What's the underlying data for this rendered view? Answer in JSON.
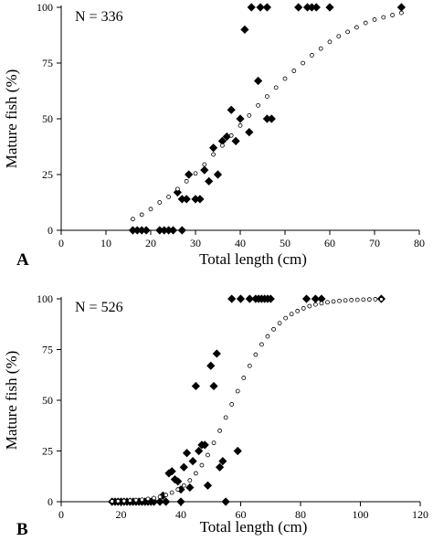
{
  "chart_data": [
    {
      "panel_label": "A",
      "type": "scatter",
      "annotation": "N = 336",
      "xlabel": "Total length (cm)",
      "ylabel": "Mature fish (%)",
      "xlim": [
        0,
        80
      ],
      "ylim": [
        0,
        100
      ],
      "xticks": [
        "0",
        "10",
        "20",
        "30",
        "40",
        "50",
        "60",
        "70",
        "80"
      ],
      "yticks": [
        "0",
        "25",
        "50",
        "75",
        "100"
      ],
      "grid": false,
      "series": [
        {
          "marker": "filled-diamond",
          "points": [
            [
              16,
              0
            ],
            [
              17,
              0
            ],
            [
              18,
              0
            ],
            [
              19,
              0
            ],
            [
              22,
              0
            ],
            [
              23,
              0
            ],
            [
              24,
              0
            ],
            [
              25,
              0
            ],
            [
              27,
              0
            ],
            [
              26,
              17
            ],
            [
              27,
              14
            ],
            [
              28,
              14
            ],
            [
              28.5,
              25
            ],
            [
              30,
              14
            ],
            [
              31,
              14
            ],
            [
              32,
              27
            ],
            [
              33,
              22
            ],
            [
              34,
              37
            ],
            [
              35,
              25
            ],
            [
              36,
              40
            ],
            [
              37,
              42
            ],
            [
              38,
              54
            ],
            [
              39,
              40
            ],
            [
              40,
              50
            ],
            [
              41,
              90
            ],
            [
              42,
              44
            ],
            [
              42.5,
              100
            ],
            [
              44,
              67
            ],
            [
              44.5,
              100
            ],
            [
              46,
              100
            ],
            [
              46,
              50
            ],
            [
              47,
              50
            ],
            [
              53,
              100
            ],
            [
              55,
              100
            ],
            [
              56,
              100
            ],
            [
              57,
              100
            ],
            [
              60,
              100
            ],
            [
              76,
              100
            ]
          ]
        },
        {
          "marker": "open-circle",
          "points": [
            [
              16,
              5
            ],
            [
              18,
              7
            ],
            [
              20,
              9.5
            ],
            [
              22,
              12.5
            ],
            [
              24,
              15
            ],
            [
              26,
              18.5
            ],
            [
              28,
              22
            ],
            [
              30,
              25.5
            ],
            [
              32,
              29.5
            ],
            [
              34,
              34
            ],
            [
              36,
              38
            ],
            [
              38,
              42.5
            ],
            [
              40,
              47
            ],
            [
              42,
              51.5
            ],
            [
              44,
              56
            ],
            [
              46,
              60
            ],
            [
              48,
              64
            ],
            [
              50,
              68
            ],
            [
              52,
              71.5
            ],
            [
              54,
              75
            ],
            [
              56,
              78.5
            ],
            [
              58,
              81.5
            ],
            [
              60,
              84.5
            ],
            [
              62,
              87
            ],
            [
              64,
              89
            ],
            [
              66,
              91
            ],
            [
              68,
              93
            ],
            [
              70,
              94.5
            ],
            [
              72,
              95.5
            ],
            [
              74,
              96.5
            ],
            [
              76,
              97.5
            ]
          ]
        }
      ]
    },
    {
      "panel_label": "B",
      "type": "scatter",
      "annotation": "N = 526",
      "xlabel": "Total length (cm)",
      "ylabel": "Mature fish (%)",
      "xlim": [
        0,
        120
      ],
      "ylim": [
        0,
        100
      ],
      "xticks": [
        "0",
        "20",
        "40",
        "60",
        "80",
        "100",
        "120"
      ],
      "yticks": [
        "0",
        "25",
        "50",
        "75",
        "100"
      ],
      "grid": false,
      "series": [
        {
          "marker": "filled-diamond",
          "points": [
            [
              17,
              0
            ],
            [
              18,
              0
            ],
            [
              19,
              0
            ],
            [
              20,
              0
            ],
            [
              21,
              0
            ],
            [
              22,
              0
            ],
            [
              23,
              0
            ],
            [
              24,
              0
            ],
            [
              25,
              0
            ],
            [
              26,
              0
            ],
            [
              27,
              0
            ],
            [
              28,
              0
            ],
            [
              29,
              0
            ],
            [
              30,
              0
            ],
            [
              31,
              0
            ],
            [
              33,
              0
            ],
            [
              34,
              3
            ],
            [
              35,
              0
            ],
            [
              36,
              14
            ],
            [
              37,
              15
            ],
            [
              38,
              11
            ],
            [
              39,
              10
            ],
            [
              40,
              0
            ],
            [
              40,
              6
            ],
            [
              41,
              17
            ],
            [
              42,
              24
            ],
            [
              43,
              7
            ],
            [
              44,
              20
            ],
            [
              45,
              57
            ],
            [
              46,
              25
            ],
            [
              47,
              28
            ],
            [
              48,
              28
            ],
            [
              49,
              8
            ],
            [
              50,
              67
            ],
            [
              51,
              57
            ],
            [
              52,
              73
            ],
            [
              53,
              17
            ],
            [
              54,
              20
            ],
            [
              55,
              0
            ],
            [
              57,
              100
            ],
            [
              59,
              25
            ],
            [
              60,
              100
            ],
            [
              63,
              100
            ],
            [
              65,
              100
            ],
            [
              66,
              100
            ],
            [
              67,
              100
            ],
            [
              68,
              100
            ],
            [
              69,
              100
            ],
            [
              70,
              100
            ],
            [
              82,
              100
            ],
            [
              85,
              100
            ],
            [
              87,
              100
            ],
            [
              107,
              100
            ]
          ]
        },
        {
          "marker": "open-circle",
          "points": [
            [
              17,
              0.2
            ],
            [
              19,
              0.3
            ],
            [
              21,
              0.4
            ],
            [
              23,
              0.6
            ],
            [
              25,
              0.8
            ],
            [
              27,
              1
            ],
            [
              29,
              1.4
            ],
            [
              31,
              1.8
            ],
            [
              33,
              2.4
            ],
            [
              35,
              3.3
            ],
            [
              37,
              4.5
            ],
            [
              39,
              6
            ],
            [
              41,
              8
            ],
            [
              43,
              10.5
            ],
            [
              45,
              14
            ],
            [
              47,
              18
            ],
            [
              49,
              23
            ],
            [
              51,
              29
            ],
            [
              53,
              35
            ],
            [
              55,
              41.5
            ],
            [
              57,
              48
            ],
            [
              59,
              54.5
            ],
            [
              61,
              61
            ],
            [
              63,
              67
            ],
            [
              65,
              72.5
            ],
            [
              67,
              77.5
            ],
            [
              69,
              81.5
            ],
            [
              71,
              85
            ],
            [
              73,
              88
            ],
            [
              75,
              90.5
            ],
            [
              77,
              92.5
            ],
            [
              79,
              94
            ],
            [
              81,
              95.3
            ],
            [
              83,
              96.4
            ],
            [
              85,
              97.2
            ],
            [
              87,
              97.8
            ],
            [
              89,
              98.3
            ],
            [
              91,
              98.7
            ],
            [
              93,
              99
            ],
            [
              95,
              99.2
            ],
            [
              97,
              99.4
            ],
            [
              99,
              99.5
            ],
            [
              101,
              99.6
            ],
            [
              103,
              99.7
            ],
            [
              105,
              99.8
            ],
            [
              107,
              99.8
            ]
          ]
        }
      ]
    }
  ]
}
